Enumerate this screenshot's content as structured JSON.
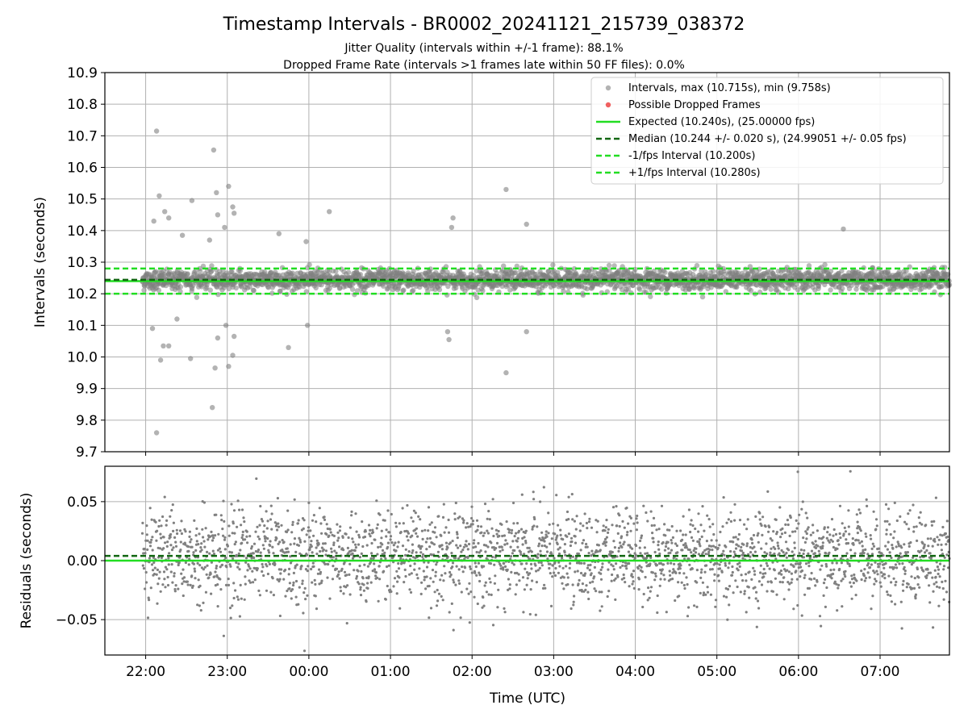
{
  "title": "Timestamp Intervals - BR0002_20241121_215739_038372",
  "subtitle_1": "Jitter Quality (intervals within +/-1 frame): 88.1%",
  "subtitle_2": "Dropped Frame Rate (intervals >1 frames late within 50 FF files): 0.0%",
  "colors": {
    "points": "#808080",
    "dropped": "#f06060",
    "expected": "#22dd22",
    "median": "#116611",
    "interval_bounds": "#22dd22",
    "grid": "#b0b0b0"
  },
  "chart_data": [
    {
      "type": "scatter",
      "panel": "intervals",
      "ylabel": "Intervals (seconds)",
      "ylim": [
        9.7,
        10.9
      ],
      "yticks": [
        "9.7",
        "9.8",
        "9.9",
        "10.0",
        "10.1",
        "10.2",
        "10.3",
        "10.4",
        "10.5",
        "10.6",
        "10.7",
        "10.8",
        "10.9"
      ],
      "xlim_hours": [
        21.5,
        31.85
      ],
      "grid": true,
      "legend_position": "top-right",
      "legend": [
        "Intervals, max (10.715s), min (9.758s)",
        "Possible Dropped Frames",
        "Expected (10.240s), (25.00000 fps)",
        "Median (10.244 +/- 0.020 s), (24.99051 +/- 0.05 fps)",
        "-1/fps Interval (10.200s)",
        "+1/fps Interval (10.280s)"
      ],
      "lines": {
        "expected": 10.24,
        "median": 10.244,
        "minus_1_fps": 10.2,
        "plus_1_fps": 10.28
      },
      "summary": {
        "max": 10.715,
        "min": 9.758,
        "median_std": 0.02
      },
      "outliers": [
        {
          "t": "22:08",
          "v": 10.715
        },
        {
          "t": "22:10",
          "v": 10.51
        },
        {
          "t": "22:06",
          "v": 10.43
        },
        {
          "t": "22:14",
          "v": 10.46
        },
        {
          "t": "22:17",
          "v": 10.44
        },
        {
          "t": "22:27",
          "v": 10.385
        },
        {
          "t": "22:34",
          "v": 10.495
        },
        {
          "t": "22:47",
          "v": 10.37
        },
        {
          "t": "22:50",
          "v": 10.655
        },
        {
          "t": "22:52",
          "v": 10.52
        },
        {
          "t": "22:53",
          "v": 10.45
        },
        {
          "t": "22:58",
          "v": 10.41
        },
        {
          "t": "23:01",
          "v": 10.54
        },
        {
          "t": "23:04",
          "v": 10.475
        },
        {
          "t": "23:05",
          "v": 10.455
        },
        {
          "t": "23:38",
          "v": 10.39
        },
        {
          "t": "23:58",
          "v": 10.365
        },
        {
          "t": "00:15",
          "v": 10.46
        },
        {
          "t": "01:45",
          "v": 10.41
        },
        {
          "t": "01:46",
          "v": 10.44
        },
        {
          "t": "02:25",
          "v": 10.53
        },
        {
          "t": "02:40",
          "v": 10.42
        },
        {
          "t": "06:33",
          "v": 10.405
        },
        {
          "t": "22:05",
          "v": 10.09
        },
        {
          "t": "22:11",
          "v": 9.99
        },
        {
          "t": "22:13",
          "v": 10.035
        },
        {
          "t": "22:17",
          "v": 10.035
        },
        {
          "t": "22:23",
          "v": 10.12
        },
        {
          "t": "22:33",
          "v": 9.995
        },
        {
          "t": "22:49",
          "v": 9.84
        },
        {
          "t": "22:51",
          "v": 9.965
        },
        {
          "t": "22:53",
          "v": 10.06
        },
        {
          "t": "22:59",
          "v": 10.1
        },
        {
          "t": "23:01",
          "v": 9.97
        },
        {
          "t": "23:04",
          "v": 10.005
        },
        {
          "t": "23:05",
          "v": 10.065
        },
        {
          "t": "23:45",
          "v": 10.03
        },
        {
          "t": "23:59",
          "v": 10.1
        },
        {
          "t": "01:42",
          "v": 10.08
        },
        {
          "t": "01:43",
          "v": 10.055
        },
        {
          "t": "02:25",
          "v": 9.95
        },
        {
          "t": "02:40",
          "v": 10.08
        },
        {
          "t": "22:08",
          "v": 9.76
        }
      ]
    },
    {
      "type": "scatter",
      "panel": "residuals",
      "xlabel": "Time (UTC)",
      "ylabel": "Residuals (seconds)",
      "ylim": [
        -0.08,
        0.08
      ],
      "yticks": [
        "−0.05",
        "0.00",
        "0.05"
      ],
      "xticks": [
        "22:00",
        "23:00",
        "00:00",
        "01:00",
        "02:00",
        "03:00",
        "04:00",
        "05:00",
        "06:00",
        "07:00"
      ],
      "grid": true,
      "lines": {
        "expected": 0.0,
        "median": 0.004
      },
      "residual_std": 0.02
    }
  ]
}
